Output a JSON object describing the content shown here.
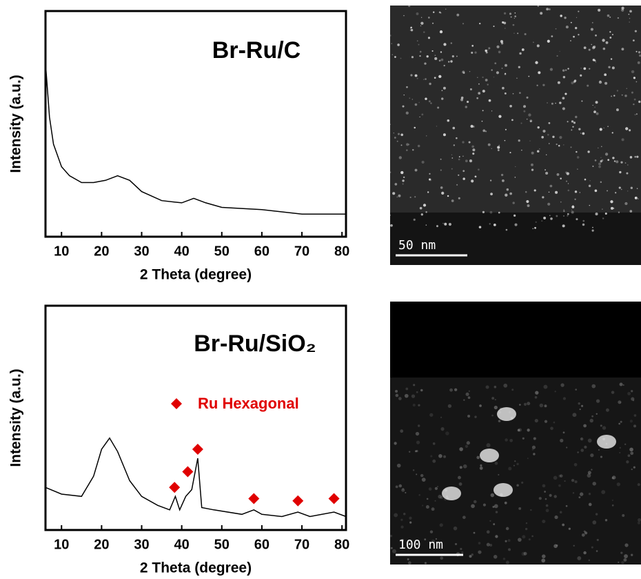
{
  "chart_data": [
    {
      "type": "line",
      "title": "Br-Ru/C",
      "x_label": "2 Theta (degree)",
      "y_label": "Intensity (a.u.)",
      "x": [
        6,
        7,
        8,
        10,
        12,
        15,
        18,
        21,
        24,
        27,
        30,
        35,
        40,
        43,
        46,
        50,
        60,
        70,
        81
      ],
      "values": [
        77,
        53,
        41,
        31,
        27,
        24,
        24,
        25,
        27,
        25,
        20,
        16,
        15,
        17,
        15,
        13,
        12,
        10,
        10
      ],
      "color": "#000000",
      "xlim": [
        6,
        81
      ],
      "ylim": [
        0,
        100
      ],
      "xticks": [
        10,
        20,
        30,
        40,
        50,
        60,
        70,
        80
      ]
    },
    {
      "type": "line",
      "title": "Br-Ru/SiO₂",
      "x_label": "2 Theta (degree)",
      "y_label": "Intensity (a.u.)",
      "x": [
        6,
        10,
        15,
        18,
        20,
        22,
        24,
        27,
        30,
        34,
        37,
        38.4,
        39.5,
        41,
        42.5,
        44,
        45,
        48,
        55,
        58,
        60,
        65,
        69,
        72,
        78,
        81
      ],
      "values": [
        19,
        16,
        15,
        24,
        36,
        41,
        35,
        22,
        15,
        11,
        9,
        15,
        9,
        15,
        18,
        32,
        10,
        9,
        7,
        9,
        7,
        6,
        8,
        6,
        8,
        6
      ],
      "color": "#000000",
      "markers": {
        "name": "Ru Hexagonal",
        "color": "#e00000",
        "x": [
          38.2,
          41.5,
          44,
          58,
          69,
          78
        ],
        "values": [
          19,
          26,
          36,
          14,
          13,
          14
        ]
      },
      "xlim": [
        6,
        81
      ],
      "ylim": [
        0,
        100
      ],
      "xticks": [
        10,
        20,
        30,
        40,
        50,
        60,
        70,
        80
      ]
    }
  ],
  "images": [
    {
      "scale_bar": "50 nm"
    },
    {
      "scale_bar": "100 nm"
    }
  ]
}
